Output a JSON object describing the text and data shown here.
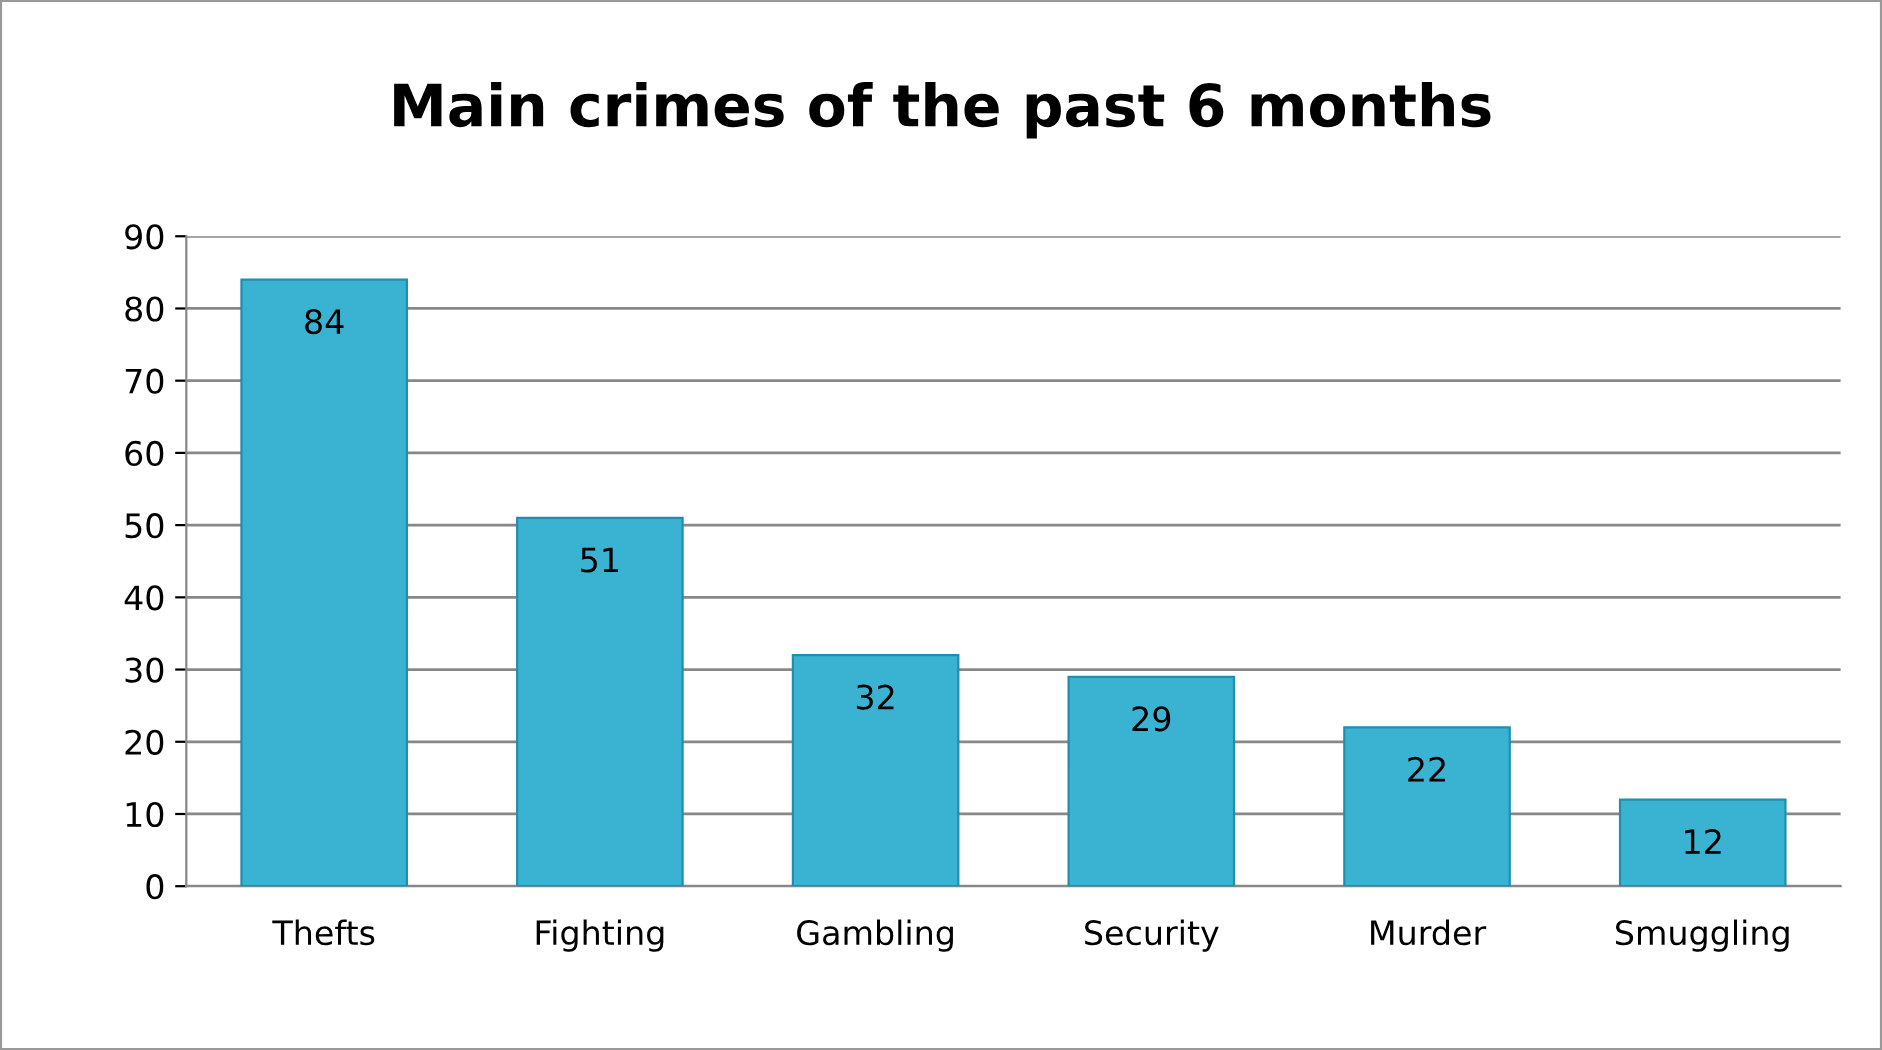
{
  "chart_data": {
    "type": "bar",
    "title": "Main crimes of the past 6 months",
    "categories": [
      "Thefts",
      "Fighting",
      "Gambling",
      "Security",
      "Murder",
      "Smuggling"
    ],
    "values": [
      84,
      51,
      32,
      29,
      22,
      12
    ],
    "color": "#3ab3d3",
    "ylim": [
      0,
      90
    ],
    "yticks": [
      0,
      10,
      20,
      30,
      40,
      50,
      60,
      70,
      80,
      90
    ],
    "grid": "y",
    "data_labels": true
  }
}
